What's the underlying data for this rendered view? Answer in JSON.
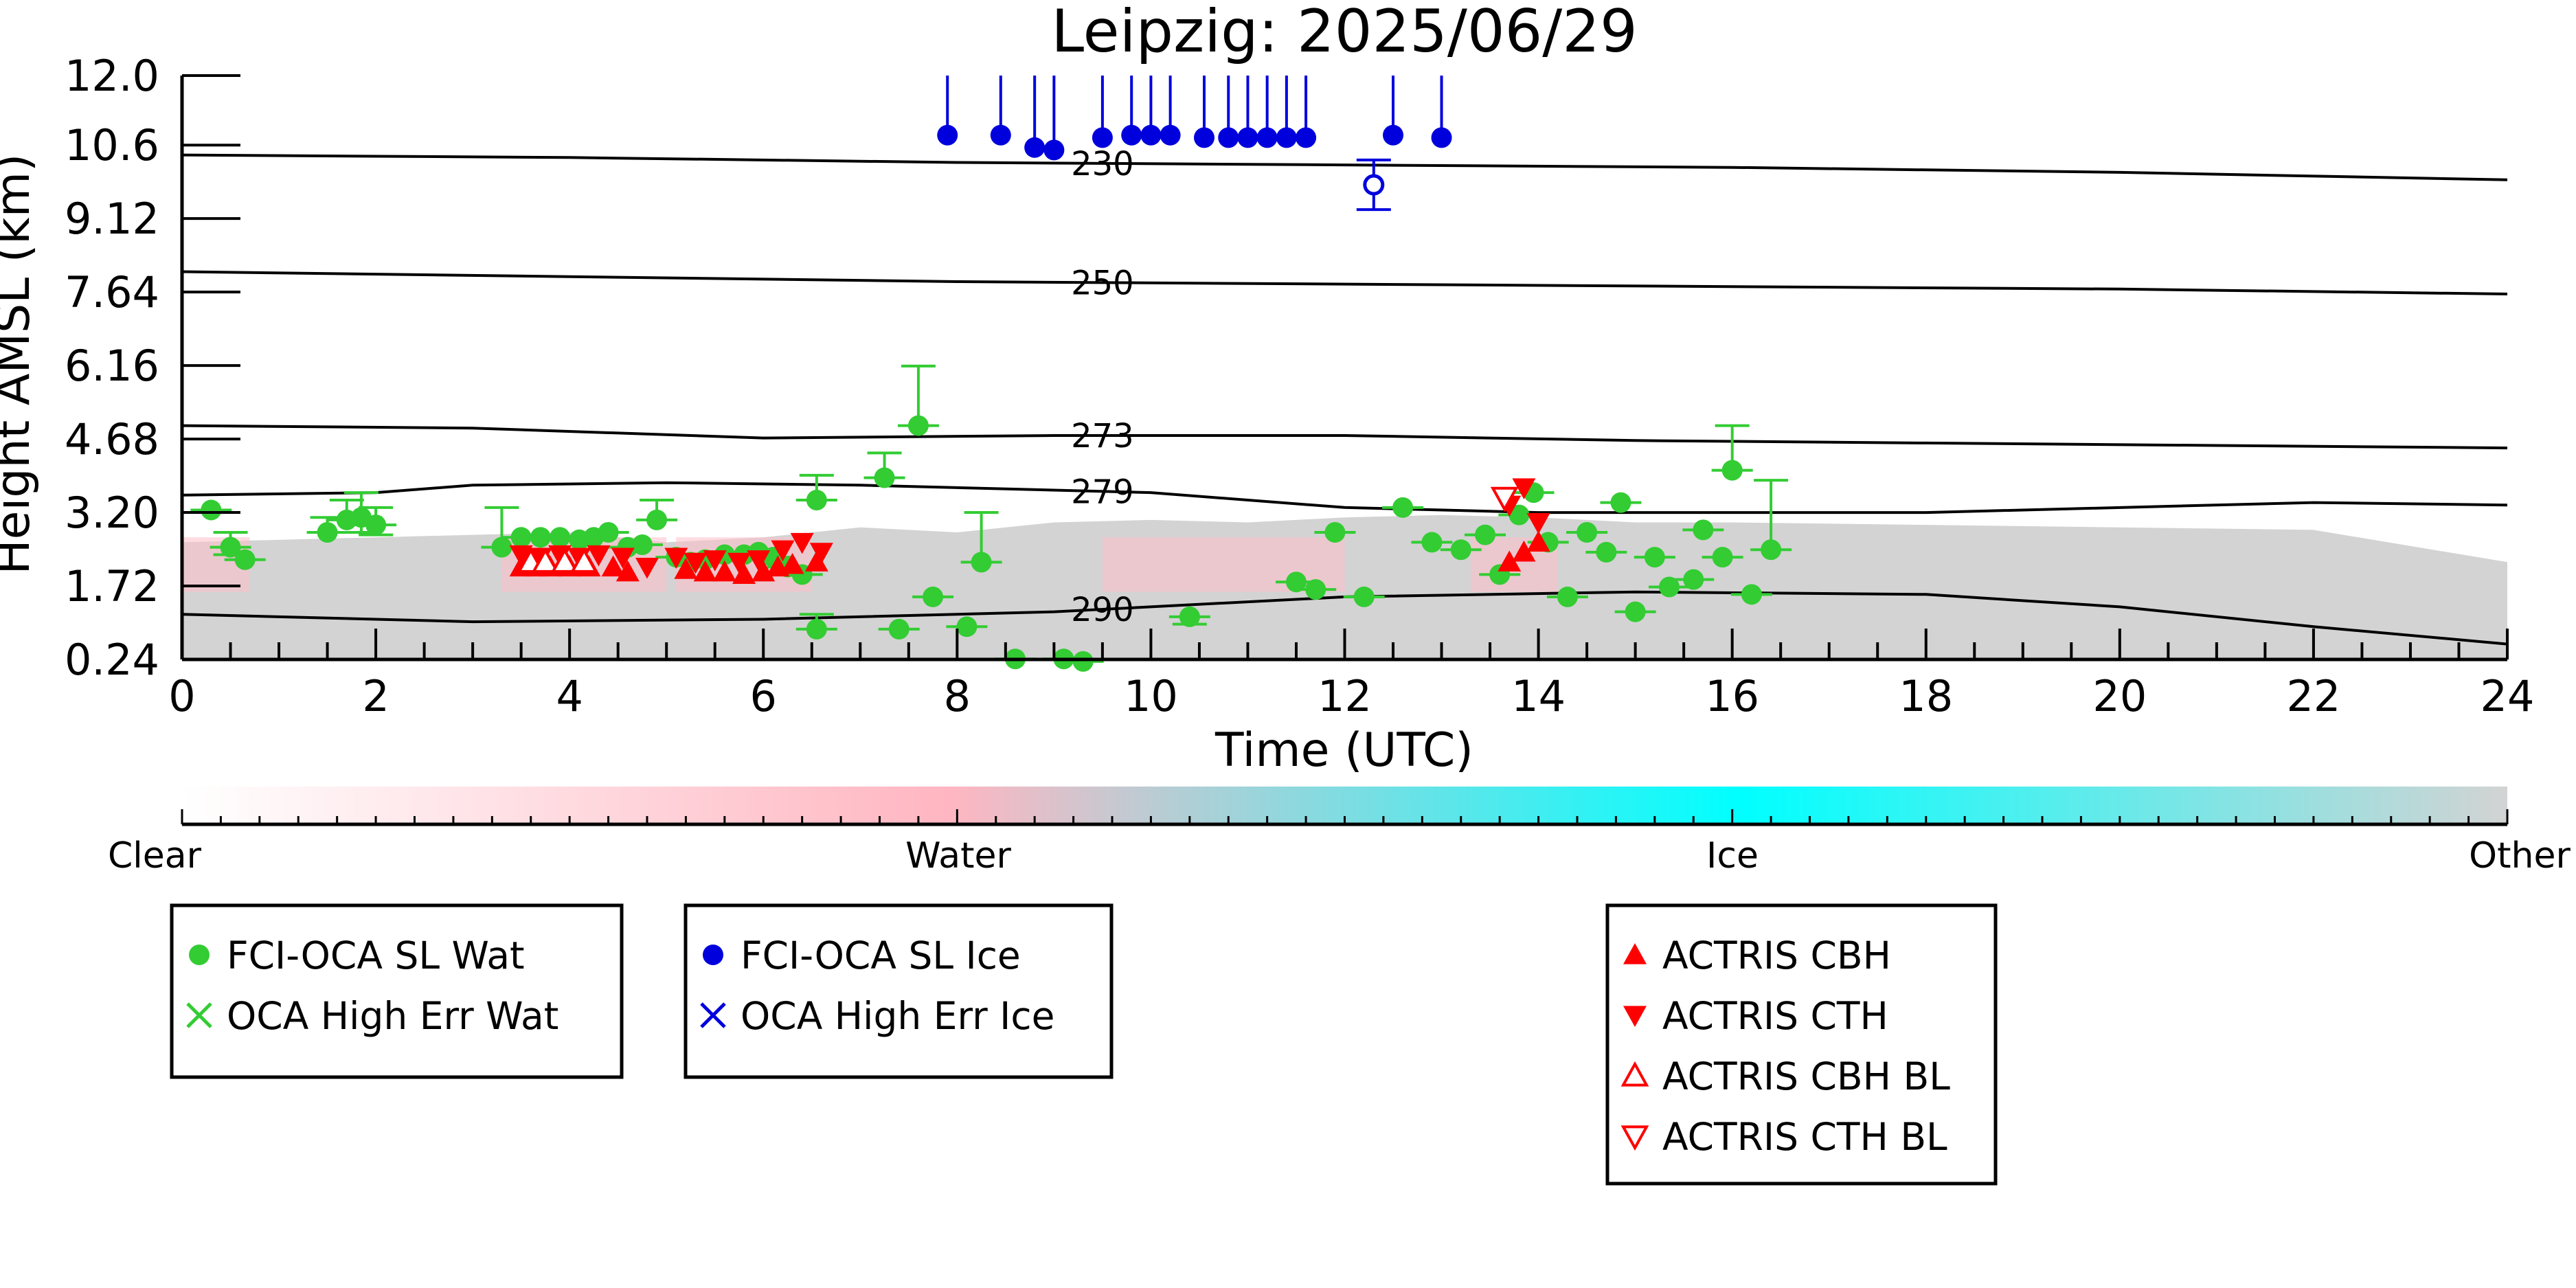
{
  "chart_data": {
    "type": "scatter",
    "title": "Leipzig: 2025/06/29",
    "xlabel": "Time (UTC)",
    "ylabel": "Height AMSL (km)",
    "xlim": [
      0,
      24
    ],
    "ylim": [
      0.24,
      12.0
    ],
    "xticks": [
      "0",
      "2",
      "4",
      "6",
      "8",
      "10",
      "12",
      "14",
      "16",
      "18",
      "20",
      "22",
      "24"
    ],
    "yticks": [
      "12.0",
      "10.6",
      "9.12",
      "7.64",
      "6.16",
      "4.68",
      "3.20",
      "1.72",
      "0.24"
    ],
    "colorbar": {
      "labels": [
        "Clear",
        "Water",
        "Ice",
        "Other"
      ],
      "colors": [
        "#ffffff",
        "#ffb6c1",
        "#00ffff",
        "#d3d3d3"
      ]
    },
    "background": {
      "description_color": "#d3d3d3",
      "cloud_top_km": [
        [
          0,
          2.6
        ],
        [
          2,
          2.7
        ],
        [
          3,
          2.75
        ],
        [
          4,
          2.8
        ],
        [
          5,
          2.6
        ],
        [
          6,
          2.7
        ],
        [
          7,
          2.9
        ],
        [
          8,
          2.8
        ],
        [
          9,
          3.0
        ],
        [
          10,
          3.05
        ],
        [
          11,
          3.0
        ],
        [
          12,
          3.1
        ],
        [
          13,
          3.15
        ],
        [
          14,
          3.1
        ],
        [
          15,
          3.0
        ],
        [
          16,
          3.0
        ],
        [
          18,
          2.95
        ],
        [
          20,
          2.9
        ],
        [
          22,
          2.85
        ],
        [
          24,
          2.2
        ]
      ]
    },
    "isotherms": [
      {
        "label": "230",
        "points": [
          [
            0,
            10.4
          ],
          [
            4,
            10.35
          ],
          [
            8,
            10.25
          ],
          [
            12,
            10.2
          ],
          [
            16,
            10.15
          ],
          [
            20,
            10.05
          ],
          [
            24,
            9.9
          ]
        ]
      },
      {
        "label": "250",
        "points": [
          [
            0,
            8.05
          ],
          [
            4,
            7.95
          ],
          [
            8,
            7.85
          ],
          [
            12,
            7.8
          ],
          [
            16,
            7.75
          ],
          [
            20,
            7.7
          ],
          [
            24,
            7.6
          ]
        ]
      },
      {
        "label": "273",
        "points": [
          [
            0,
            4.95
          ],
          [
            3,
            4.9
          ],
          [
            6,
            4.7
          ],
          [
            9,
            4.75
          ],
          [
            12,
            4.75
          ],
          [
            15,
            4.65
          ],
          [
            18,
            4.6
          ],
          [
            21,
            4.55
          ],
          [
            24,
            4.5
          ]
        ]
      },
      {
        "label": "279",
        "points": [
          [
            0,
            3.55
          ],
          [
            2,
            3.6
          ],
          [
            3,
            3.75
          ],
          [
            5,
            3.8
          ],
          [
            7,
            3.75
          ],
          [
            10,
            3.6
          ],
          [
            12,
            3.3
          ],
          [
            14,
            3.2
          ],
          [
            18,
            3.2
          ],
          [
            22,
            3.4
          ],
          [
            24,
            3.35
          ]
        ]
      },
      {
        "label": "290",
        "points": [
          [
            0,
            1.15
          ],
          [
            3,
            1.0
          ],
          [
            6,
            1.05
          ],
          [
            9,
            1.2
          ],
          [
            12,
            1.5
          ],
          [
            15,
            1.6
          ],
          [
            18,
            1.55
          ],
          [
            20,
            1.3
          ],
          [
            22,
            0.9
          ],
          [
            24,
            0.55
          ]
        ]
      }
    ],
    "series": [
      {
        "name": "FCI-OCA SL Wat",
        "color": "#33cc33",
        "marker": "circle",
        "points": [
          [
            0.3,
            3.25,
            0,
            0
          ],
          [
            0.5,
            2.5,
            0.15,
            0.3
          ],
          [
            0.65,
            2.25,
            0,
            0
          ],
          [
            1.5,
            2.8,
            0,
            0.3
          ],
          [
            1.7,
            3.05,
            0,
            0.4
          ],
          [
            1.85,
            3.1,
            0.3,
            0.5
          ],
          [
            2.0,
            2.95,
            0.2,
            0.35
          ],
          [
            3.3,
            2.5,
            0,
            0.8
          ],
          [
            3.5,
            2.7,
            0,
            0
          ],
          [
            3.7,
            2.7,
            0,
            0
          ],
          [
            3.9,
            2.7,
            0,
            0
          ],
          [
            4.1,
            2.65,
            0,
            0
          ],
          [
            4.25,
            2.7,
            0,
            0
          ],
          [
            4.4,
            2.8,
            0,
            0
          ],
          [
            4.6,
            2.5,
            0,
            0
          ],
          [
            4.75,
            2.55,
            0,
            0
          ],
          [
            4.9,
            3.05,
            0,
            0.4
          ],
          [
            5.1,
            2.3,
            0,
            0
          ],
          [
            5.25,
            2.2,
            0,
            0
          ],
          [
            5.4,
            2.25,
            0,
            0
          ],
          [
            5.6,
            2.35,
            0,
            0
          ],
          [
            5.8,
            2.35,
            0,
            0
          ],
          [
            5.95,
            2.4,
            0,
            0
          ],
          [
            6.1,
            2.3,
            0,
            0
          ],
          [
            6.25,
            2.1,
            0,
            0
          ],
          [
            6.4,
            1.95,
            0,
            0
          ],
          [
            6.55,
            3.45,
            0,
            0.5
          ],
          [
            6.55,
            0.85,
            0,
            0.3
          ],
          [
            7.25,
            3.9,
            0,
            0.5
          ],
          [
            7.6,
            4.95,
            0,
            1.2
          ],
          [
            7.4,
            0.85,
            0,
            0
          ],
          [
            7.75,
            1.5,
            0,
            0
          ],
          [
            8.1,
            0.9,
            0,
            0
          ],
          [
            8.25,
            2.2,
            0,
            1.0
          ],
          [
            8.6,
            0.25,
            0,
            0
          ],
          [
            9.1,
            0.25,
            0,
            0
          ],
          [
            9.3,
            0.2,
            0,
            0
          ],
          [
            10.4,
            1.1,
            0.15,
            0
          ],
          [
            11.5,
            1.8,
            0,
            0
          ],
          [
            11.7,
            1.65,
            0,
            0
          ],
          [
            11.9,
            2.8,
            0,
            0
          ],
          [
            12.2,
            1.5,
            0,
            0
          ],
          [
            12.6,
            3.3,
            0,
            0
          ],
          [
            12.9,
            2.6,
            0,
            0
          ],
          [
            13.2,
            2.45,
            0,
            0
          ],
          [
            13.45,
            2.75,
            0,
            0
          ],
          [
            13.6,
            1.95,
            0,
            0
          ],
          [
            13.8,
            3.15,
            0,
            0
          ],
          [
            13.95,
            3.6,
            0,
            0
          ],
          [
            14.1,
            2.6,
            0,
            0
          ],
          [
            14.3,
            1.5,
            0,
            0
          ],
          [
            14.5,
            2.8,
            0,
            0
          ],
          [
            14.7,
            2.4,
            0,
            0
          ],
          [
            14.85,
            3.4,
            0,
            0
          ],
          [
            15.0,
            1.2,
            0,
            0
          ],
          [
            15.2,
            2.3,
            0,
            0
          ],
          [
            15.35,
            1.7,
            0,
            0
          ],
          [
            15.6,
            1.85,
            0,
            0
          ],
          [
            15.7,
            2.85,
            0,
            0
          ],
          [
            15.9,
            2.3,
            0,
            0
          ],
          [
            16.0,
            4.05,
            0,
            0.9
          ],
          [
            16.2,
            1.55,
            0,
            0
          ],
          [
            16.4,
            2.45,
            0,
            1.4
          ]
        ]
      },
      {
        "name": "OCA High Err Wat",
        "color": "#33cc33",
        "marker": "x",
        "points": []
      },
      {
        "name": "FCI-OCA SL Ice",
        "color": "#0000dd",
        "marker": "circle",
        "points": [
          [
            7.9,
            10.8,
            0,
            1.6
          ],
          [
            8.45,
            10.8,
            0,
            1.6
          ],
          [
            8.8,
            10.55,
            0,
            3.5
          ],
          [
            9.0,
            10.5,
            0,
            2.8
          ],
          [
            9.5,
            10.75,
            0,
            2.0
          ],
          [
            9.8,
            10.8,
            0,
            1.8
          ],
          [
            10.0,
            10.8,
            0,
            1.8
          ],
          [
            10.2,
            10.8,
            0,
            1.8
          ],
          [
            10.55,
            10.75,
            0,
            2.0
          ],
          [
            10.8,
            10.75,
            0,
            2.0
          ],
          [
            11.0,
            10.75,
            0,
            2.0
          ],
          [
            11.2,
            10.75,
            0,
            2.0
          ],
          [
            11.4,
            10.75,
            0,
            2.8
          ],
          [
            11.6,
            10.75,
            0,
            2.8
          ],
          [
            12.5,
            10.8,
            0,
            2.2
          ],
          [
            13.0,
            10.75,
            0,
            2.8
          ]
        ]
      },
      {
        "name": "OCA High Err Ice",
        "color": "#0000dd",
        "marker": "x",
        "points": []
      },
      {
        "name": "ACTRIS CBH",
        "color": "#ff0000",
        "marker": "triangle-up",
        "points": [
          [
            3.5,
            2.1
          ],
          [
            3.65,
            2.1
          ],
          [
            3.8,
            2.1
          ],
          [
            4.0,
            2.1
          ],
          [
            4.2,
            2.1
          ],
          [
            4.45,
            2.1
          ],
          [
            4.6,
            2.0
          ],
          [
            5.2,
            2.05
          ],
          [
            5.4,
            2.0
          ],
          [
            5.6,
            2.0
          ],
          [
            5.8,
            1.95
          ],
          [
            6.0,
            2.0
          ],
          [
            6.15,
            2.1
          ],
          [
            6.3,
            2.15
          ],
          [
            6.55,
            2.2
          ],
          [
            13.7,
            2.2
          ],
          [
            13.85,
            2.4
          ],
          [
            14.0,
            2.6
          ]
        ]
      },
      {
        "name": "ACTRIS CTH",
        "color": "#ff0000",
        "marker": "triangle-down",
        "points": [
          [
            3.5,
            2.35
          ],
          [
            3.7,
            2.3
          ],
          [
            3.9,
            2.35
          ],
          [
            4.1,
            2.3
          ],
          [
            4.3,
            2.35
          ],
          [
            4.55,
            2.3
          ],
          [
            4.8,
            2.1
          ],
          [
            5.1,
            2.3
          ],
          [
            5.3,
            2.2
          ],
          [
            5.5,
            2.25
          ],
          [
            5.75,
            2.2
          ],
          [
            5.95,
            2.25
          ],
          [
            6.2,
            2.45
          ],
          [
            6.4,
            2.6
          ],
          [
            6.6,
            2.4
          ],
          [
            13.7,
            3.35
          ],
          [
            13.85,
            3.7
          ],
          [
            14.0,
            3.0
          ]
        ]
      },
      {
        "name": "ACTRIS CBH BL",
        "color": "#ff0000",
        "marker": "triangle-up-open",
        "points": [
          [
            3.6,
            2.2
          ],
          [
            3.75,
            2.2
          ],
          [
            3.95,
            2.2
          ],
          [
            4.15,
            2.2
          ]
        ]
      },
      {
        "name": "ACTRIS CTH BL",
        "color": "#ff0000",
        "marker": "triangle-down-open",
        "points": [
          [
            13.65,
            3.5
          ]
        ]
      }
    ],
    "open_points": [
      {
        "series": "FCI-OCA SL Ice",
        "x": 12.3,
        "y": 9.8,
        "err_low": 0.5,
        "err_high": 0.5
      }
    ],
    "legend": [
      {
        "group": "left",
        "items": [
          "FCI-OCA SL Wat",
          "OCA High Err Wat"
        ]
      },
      {
        "group": "middle",
        "items": [
          "FCI-OCA SL Ice",
          "OCA High Err Ice"
        ]
      },
      {
        "group": "right",
        "items": [
          "ACTRIS CBH",
          "ACTRIS CTH",
          "ACTRIS CBH BL",
          "ACTRIS CTH BL"
        ]
      }
    ],
    "grid": false
  }
}
